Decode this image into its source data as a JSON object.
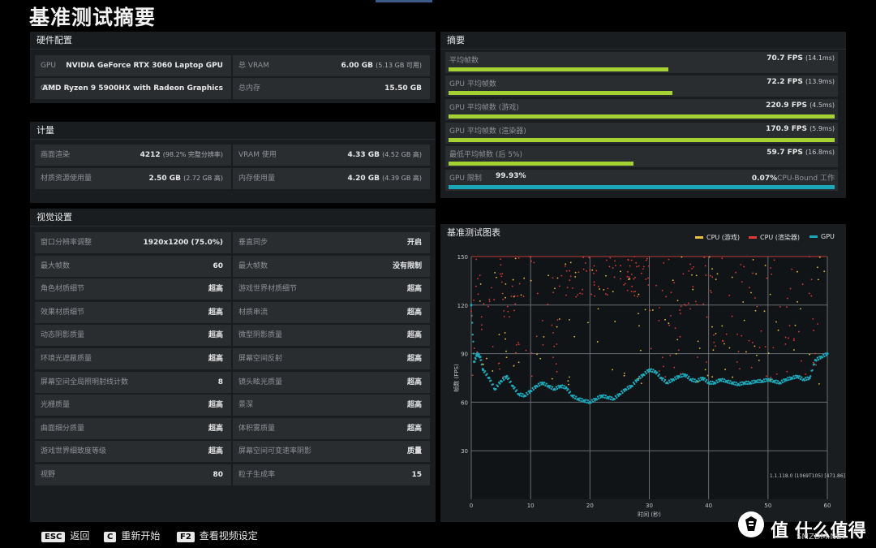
{
  "page": {
    "title": "基准测试摘要"
  },
  "hardware": {
    "header": "硬件配置",
    "gpu_label": "GPU",
    "gpu_value": "NVIDIA GeForce RTX 3060 Laptop GPU",
    "cpu_label": "CPU",
    "cpu_value": "AMD Ryzen 9 5900HX with Radeon Graphics",
    "vram_label": "总 VRAM",
    "vram_value": "6.00 GB",
    "vram_extra": "(5.13 GB 可用)",
    "mem_label": "总内存",
    "mem_value": "15.50 GB"
  },
  "metrics": {
    "header": "计量",
    "render_label": "画面渲染",
    "render_value": "4212",
    "render_extra": "(98.2% 完整分辨率)",
    "vram_use_label": "VRAM 使用",
    "vram_use_value": "4.33 GB",
    "vram_use_extra": "(4.52 GB 高)",
    "tex_label": "材质资源使用量",
    "tex_value": "2.50 GB",
    "tex_extra": "(2.72 GB 高)",
    "mem_use_label": "内存使用量",
    "mem_use_value": "4.20 GB",
    "mem_use_extra": "(4.39 GB 高)"
  },
  "visual": {
    "header": "视觉设置",
    "left": [
      {
        "label": "窗口分辨率调整",
        "value": "1920x1200 (75.0%)"
      },
      {
        "label": "最大帧数",
        "value": "60"
      },
      {
        "label": "角色材质细节",
        "value": "超高"
      },
      {
        "label": "效果材质细节",
        "value": "超高"
      },
      {
        "label": "动态阴影质量",
        "value": "超高"
      },
      {
        "label": "环境光遮蔽质量",
        "value": "超高"
      },
      {
        "label": "屏幕空间全局照明射线计数",
        "value": "8"
      },
      {
        "label": "光栅质量",
        "value": "超高"
      },
      {
        "label": "曲面细分质量",
        "value": "超高"
      },
      {
        "label": "游戏世界细致度等级",
        "value": "超高"
      },
      {
        "label": "视野",
        "value": "80"
      }
    ],
    "right": [
      {
        "label": "垂直同步",
        "value": "开启"
      },
      {
        "label": "最大帧数",
        "value": "没有限制"
      },
      {
        "label": "游戏世界材质细节",
        "value": "超高"
      },
      {
        "label": "材质串流",
        "value": "超高"
      },
      {
        "label": "微型阴影质量",
        "value": "超高"
      },
      {
        "label": "屏幕空间反射",
        "value": "超高"
      },
      {
        "label": "镜头眩光质量",
        "value": "超高"
      },
      {
        "label": "景深",
        "value": "超高"
      },
      {
        "label": "体积雾质量",
        "value": "超高"
      },
      {
        "label": "屏幕空间可变速率阴影",
        "value": "质量"
      },
      {
        "label": "粒子生成率",
        "value": "15"
      }
    ]
  },
  "summary": {
    "header": "摘要",
    "rows": [
      {
        "label": "平均帧数",
        "value": "70.7 FPS",
        "extra": "(14.1ms)",
        "fraction": 0.57,
        "color": "#a4d233"
      },
      {
        "label": "GPU 平均帧数",
        "value": "72.2 FPS",
        "extra": "(13.9ms)",
        "fraction": 0.58,
        "color": "#a4d233"
      },
      {
        "label": "GPU 平均帧数 (游戏)",
        "value": "220.9 FPS",
        "extra": "(4.5ms)",
        "fraction": 1.0,
        "color": "#a4d233"
      },
      {
        "label": "GPU 平均帧数 (渲染器)",
        "value": "170.9 FPS",
        "extra": "(5.9ms)",
        "fraction": 1.0,
        "color": "#a4d233"
      },
      {
        "label": "最低平均帧数 (后 5%)",
        "value": "59.7 FPS",
        "extra": "(16.8ms)",
        "fraction": 0.48,
        "color": "#a4d233"
      }
    ],
    "gpu_limit_label": "GPU 限制",
    "gpu_limit_value": "99.93%",
    "cpu_bound_value": "0.07%",
    "cpu_bound_label": "CPU-Bound 工作",
    "gpu_limit_fraction": 0.9993
  },
  "chart_panel": {
    "header": "基准测试图表",
    "legend": [
      {
        "name": "CPU (游戏)",
        "color": "#e8c23a"
      },
      {
        "name": "CPU (渲染器)",
        "color": "#e03a3a"
      },
      {
        "name": "GPU",
        "color": "#1aa8b8"
      }
    ],
    "version": "1.1.118.0 (1069T105) [471.86]"
  },
  "chart_data": {
    "type": "scatter",
    "xlabel": "时间 (秒)",
    "ylabel": "帧数 (FPS)",
    "xlim": [
      0,
      60
    ],
    "ylim": [
      0,
      150
    ],
    "xticks": [
      0,
      10,
      20,
      30,
      40,
      50,
      60
    ],
    "yticks": [
      30,
      60,
      90,
      120,
      150
    ],
    "grid": true,
    "series": [
      {
        "name": "GPU",
        "color": "#1aa8b8",
        "x": [
          0,
          0.5,
          1,
          1.5,
          2,
          3,
          4,
          5,
          6,
          7,
          8,
          9,
          10,
          11,
          12,
          13,
          14,
          15,
          16,
          17,
          18,
          19,
          20,
          21,
          22,
          23,
          24,
          25,
          26,
          27,
          28,
          29,
          30,
          31,
          32,
          33,
          34,
          35,
          36,
          37,
          38,
          39,
          40,
          41,
          42,
          43,
          44,
          45,
          46,
          47,
          48,
          49,
          50,
          51,
          52,
          53,
          54,
          55,
          56,
          57,
          58,
          59,
          60
        ],
        "y": [
          120,
          85,
          90,
          88,
          80,
          75,
          68,
          73,
          76,
          70,
          65,
          64,
          67,
          70,
          72,
          70,
          68,
          70,
          69,
          64,
          62,
          61,
          60,
          62,
          64,
          63,
          62,
          65,
          68,
          70,
          74,
          77,
          80,
          79,
          75,
          72,
          74,
          76,
          77,
          74,
          73,
          75,
          72,
          72,
          74,
          73,
          72,
          71,
          72,
          72,
          73,
          73,
          74,
          73,
          72,
          74,
          75,
          76,
          74,
          75,
          86,
          88,
          90
        ]
      },
      {
        "name": "CPU (渲染器)",
        "color": "#e03a3a",
        "x": [
          0,
          60
        ],
        "y": [
          150,
          150
        ]
      },
      {
        "name": "CPU (游戏)",
        "color": "#e8c23a",
        "x": [
          0,
          60
        ],
        "y": [
          150,
          150
        ]
      }
    ]
  },
  "footer": {
    "esc_key": "ESC",
    "esc_label": "返回",
    "c_key": "C",
    "c_label": "重新开始",
    "f2_key": "F2",
    "f2_label": "查看视频设定"
  },
  "watermark": {
    "text": "值 什么值得买",
    "sub": "SMZDM.NET"
  }
}
